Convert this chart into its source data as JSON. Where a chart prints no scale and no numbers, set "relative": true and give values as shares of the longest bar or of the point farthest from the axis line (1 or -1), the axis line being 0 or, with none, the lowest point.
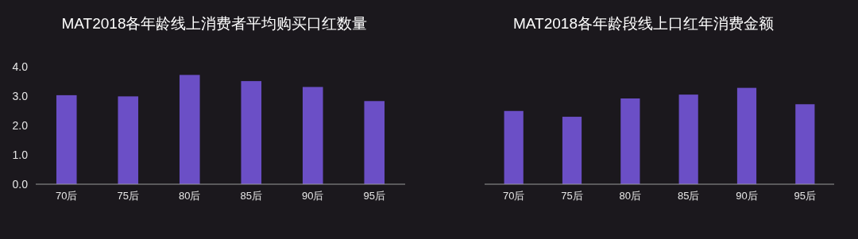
{
  "chart_data": [
    {
      "type": "bar",
      "title": "MAT2018各年龄线上消费者平均购买口红数量",
      "categories": [
        "70后",
        "75后",
        "80后",
        "85后",
        "90后",
        "95后"
      ],
      "values": [
        3.03,
        2.99,
        3.72,
        3.51,
        3.31,
        2.83
      ],
      "color": "#6b4fc6",
      "ylim": [
        0,
        4
      ],
      "yticks": [
        {
          "value": 0,
          "label": "0.0"
        },
        {
          "value": 1,
          "label": "1.0"
        },
        {
          "value": 2,
          "label": "2.0"
        },
        {
          "value": 3,
          "label": "3.0"
        },
        {
          "value": 4,
          "label": "4.0"
        }
      ],
      "grid": false
    },
    {
      "type": "bar",
      "title": "MAT2018各年龄段线上口红年消费金额",
      "categories": [
        "70后",
        "75后",
        "80后",
        "85后",
        "90后",
        "95后"
      ],
      "values": [
        0.76,
        0.7,
        0.89,
        0.93,
        1,
        0.83
      ],
      "color": "#6b4fc6",
      "relative": true,
      "grid": false
    }
  ]
}
